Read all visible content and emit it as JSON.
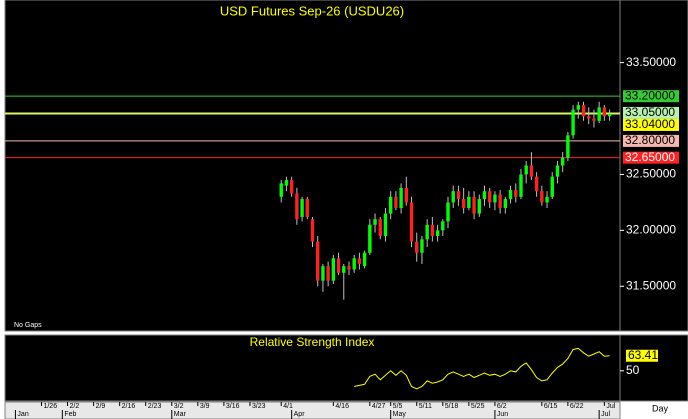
{
  "chart_data": {
    "type": "candlestick",
    "title": "USD Futures Sep-26 (USDU26)",
    "note": "No Gaps",
    "x": [
      46,
      47,
      48,
      49,
      50,
      51,
      52,
      53,
      54,
      55,
      56,
      57,
      58,
      59,
      60,
      61,
      62,
      63,
      64,
      65,
      66,
      67,
      68,
      69,
      70,
      71,
      72,
      73,
      74,
      75,
      76,
      77,
      78,
      79,
      80,
      81,
      82,
      83,
      84,
      85,
      86,
      87,
      88,
      89,
      90,
      91,
      92,
      93,
      94,
      95,
      96,
      97,
      98,
      99,
      100,
      101,
      102,
      103,
      104,
      105,
      106,
      107,
      108,
      109
    ],
    "open": [
      32.3,
      32.4,
      32.45,
      32.33,
      32.12,
      32.28,
      32.1,
      31.9,
      31.55,
      31.68,
      31.55,
      31.75,
      31.62,
      31.68,
      31.65,
      31.75,
      31.68,
      31.8,
      32.05,
      32.1,
      31.95,
      32.15,
      32.3,
      32.2,
      32.38,
      32.25,
      31.9,
      31.8,
      31.92,
      32.05,
      31.95,
      32.0,
      32.08,
      32.25,
      32.35,
      32.28,
      32.2,
      32.3,
      32.15,
      32.28,
      32.35,
      32.25,
      32.32,
      32.2,
      32.28,
      32.36,
      32.3,
      32.5,
      32.58,
      32.48,
      32.35,
      32.25,
      32.3,
      32.48,
      32.58,
      32.65,
      32.85,
      33.08,
      33.12,
      33.02,
      33.0,
      32.98,
      33.1,
      33.02
    ],
    "high": [
      32.45,
      32.48,
      32.48,
      32.38,
      32.3,
      32.3,
      32.12,
      31.95,
      31.7,
      31.72,
      31.78,
      31.8,
      31.7,
      31.72,
      31.78,
      31.8,
      31.82,
      32.1,
      32.15,
      32.12,
      32.2,
      32.35,
      32.35,
      32.42,
      32.48,
      32.3,
      31.98,
      31.95,
      32.1,
      32.12,
      32.05,
      32.1,
      32.3,
      32.4,
      32.4,
      32.38,
      32.35,
      32.35,
      32.32,
      32.4,
      32.38,
      32.35,
      32.36,
      32.3,
      32.4,
      32.42,
      32.55,
      32.62,
      32.7,
      32.52,
      32.4,
      32.35,
      32.52,
      32.62,
      32.7,
      32.88,
      33.12,
      33.15,
      33.15,
      33.1,
      33.08,
      33.15,
      33.12,
      33.08
    ],
    "low": [
      32.25,
      32.35,
      32.3,
      32.05,
      32.08,
      32.1,
      31.85,
      31.5,
      31.45,
      31.5,
      31.52,
      31.6,
      31.38,
      31.6,
      31.62,
      31.65,
      31.66,
      31.78,
      31.98,
      31.92,
      31.9,
      32.1,
      32.18,
      32.15,
      32.22,
      31.85,
      31.72,
      31.7,
      31.85,
      31.9,
      31.9,
      31.95,
      32.02,
      32.2,
      32.22,
      32.15,
      32.18,
      32.1,
      32.12,
      32.22,
      32.2,
      32.18,
      32.15,
      32.15,
      32.24,
      32.25,
      32.28,
      32.42,
      32.45,
      32.3,
      32.22,
      32.2,
      32.28,
      32.42,
      32.52,
      32.62,
      32.82,
      33.0,
      32.98,
      32.95,
      32.92,
      32.96,
      32.98,
      32.98
    ],
    "close": [
      32.42,
      32.45,
      32.33,
      32.1,
      32.28,
      32.12,
      31.9,
      31.55,
      31.68,
      31.55,
      31.75,
      31.62,
      31.68,
      31.65,
      31.75,
      31.7,
      31.8,
      32.05,
      32.1,
      31.95,
      32.15,
      32.3,
      32.2,
      32.38,
      32.25,
      31.9,
      31.8,
      31.92,
      32.05,
      31.95,
      32.0,
      32.08,
      32.25,
      32.35,
      32.28,
      32.2,
      32.3,
      32.15,
      32.28,
      32.35,
      32.25,
      32.32,
      32.2,
      32.28,
      32.36,
      32.3,
      32.5,
      32.58,
      32.48,
      32.35,
      32.25,
      32.3,
      32.48,
      32.58,
      32.65,
      32.85,
      33.08,
      33.12,
      33.02,
      33.0,
      32.98,
      33.1,
      33.02,
      33.04
    ],
    "up_color": "#00ff00",
    "down_color": "#ff2020",
    "xlim": [
      -7,
      111
    ],
    "ylim": [
      31.1,
      34.06
    ],
    "yticks": [
      {
        "value": 31.5,
        "label": "31.50000"
      },
      {
        "value": 32.0,
        "label": "32.00000"
      },
      {
        "value": 32.5,
        "label": "32.50000"
      },
      {
        "value": 33.5,
        "label": "33.50000"
      }
    ],
    "levels": [
      {
        "value": 33.2,
        "label": "33.20000",
        "color": "#33cc33"
      },
      {
        "value": 33.05,
        "label": "33.05000",
        "color": "#b8f0b0"
      },
      {
        "value": 33.04,
        "label": "33.04000",
        "color": "#ffff00"
      },
      {
        "value": 32.8,
        "label": "32.80000",
        "color": "#f4b8b0"
      },
      {
        "value": 32.65,
        "label": "32.65000",
        "color": "#ff2020"
      }
    ],
    "xticks": [
      {
        "value": 0,
        "label": "1/26"
      },
      {
        "value": 5,
        "label": "2/2"
      },
      {
        "value": 10,
        "label": "2/9"
      },
      {
        "value": 15,
        "label": "2/16"
      },
      {
        "value": 20,
        "label": "2/23"
      },
      {
        "value": 25,
        "label": "3/2"
      },
      {
        "value": 30,
        "label": "3/9"
      },
      {
        "value": 35,
        "label": "3/16"
      },
      {
        "value": 40,
        "label": "3/23"
      },
      {
        "value": 46,
        "label": "4/1"
      },
      {
        "value": 56,
        "label": "4/16"
      },
      {
        "value": 63,
        "label": "4/27"
      },
      {
        "value": 67,
        "label": "5/5"
      },
      {
        "value": 72,
        "label": "5/11"
      },
      {
        "value": 77,
        "label": "5/18"
      },
      {
        "value": 82,
        "label": "5/25"
      },
      {
        "value": 87,
        "label": "6/2"
      },
      {
        "value": 96,
        "label": "6/15"
      },
      {
        "value": 101,
        "label": "6/22"
      },
      {
        "value": 108,
        "label": "Jul"
      }
    ],
    "months": [
      {
        "value": -5,
        "label": "Jan"
      },
      {
        "value": 4,
        "label": "Feb"
      },
      {
        "value": 25,
        "label": "Mar"
      },
      {
        "value": 48,
        "label": "Apr"
      },
      {
        "value": 67,
        "label": "May"
      },
      {
        "value": 87,
        "label": "Jun"
      },
      {
        "value": 107,
        "label": "Jul"
      }
    ],
    "period": "Day",
    "rsi": {
      "title": "Relative Strength Index",
      "color": "#ffff00",
      "values": [
        null,
        null,
        null,
        null,
        null,
        null,
        null,
        null,
        null,
        null,
        null,
        null,
        null,
        null,
        36,
        37,
        38,
        45,
        47,
        42,
        46,
        50,
        46,
        50,
        46,
        36,
        34,
        36,
        41,
        39,
        40,
        42,
        47,
        49,
        47,
        45,
        47,
        44,
        46,
        48,
        46,
        47,
        45,
        47,
        50,
        49,
        54,
        57,
        51,
        44,
        41,
        42,
        48,
        53,
        56,
        61,
        69,
        70,
        66,
        63,
        65,
        67,
        63,
        63.41
      ],
      "last_label": "63.41",
      "ylim": [
        24,
        81
      ],
      "yticks": [
        50
      ]
    }
  }
}
